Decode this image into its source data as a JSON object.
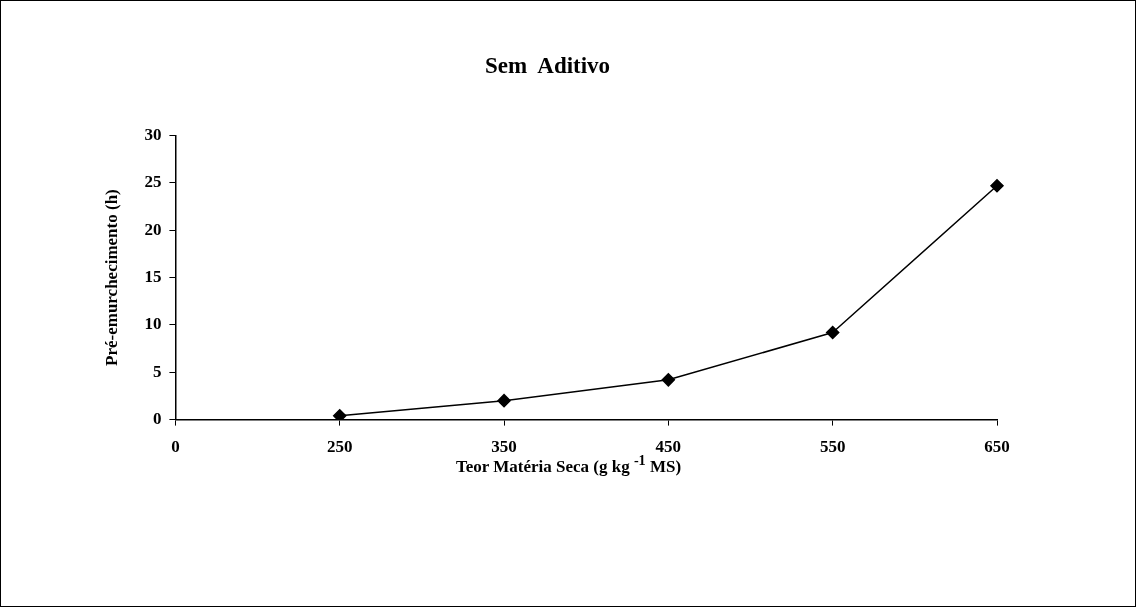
{
  "chart_data": {
    "type": "line",
    "title": "Sem  Aditivo",
    "xlabel": "Teor Matéria Seca (g kg $^{-1}$ MS)",
    "ylabel": "Pré-emurchecimento (h)",
    "categories": [
      "0",
      "250",
      "350",
      "450",
      "550",
      "650"
    ],
    "series": [
      {
        "color": "#000000",
        "values": [
          null,
          0.4,
          2.0,
          4.2,
          9.2,
          24.7
        ]
      }
    ],
    "ylim": [
      0,
      30
    ],
    "yticks": [
      0,
      5,
      10,
      15,
      20,
      25,
      30
    ],
    "grid": false,
    "legend": false,
    "marker": "diamond",
    "line_style": "solid"
  }
}
